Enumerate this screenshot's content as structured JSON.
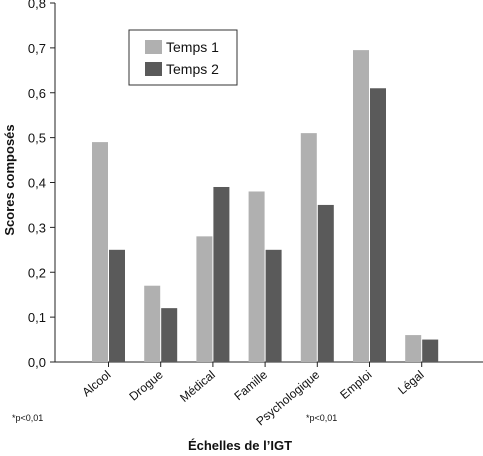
{
  "chart_data": {
    "type": "bar",
    "categories": [
      "Alcool",
      "Drogue",
      "Médical",
      "Famille",
      "Psychologique",
      "Emploi",
      "Légal"
    ],
    "series": [
      {
        "name": "Temps 1",
        "color": "#b0b0b0",
        "values": [
          0.49,
          0.17,
          0.28,
          0.38,
          0.51,
          0.695,
          0.06
        ]
      },
      {
        "name": "Temps 2",
        "color": "#5a5a5a",
        "values": [
          0.25,
          0.12,
          0.39,
          0.25,
          0.35,
          0.61,
          0.05
        ]
      }
    ],
    "xlabel": "Échelles de l’IGT",
    "ylabel": "Scores composés",
    "ylim": [
      0,
      0.8
    ],
    "yticks": [
      "0,0",
      "0,1",
      "0,2",
      "0,3",
      "0,4",
      "0,5",
      "0,6",
      "0,7",
      "0,8"
    ],
    "legend_position": "top-left",
    "grid": false,
    "annotations": [
      "*p<0,01",
      "*p<0,01"
    ]
  }
}
